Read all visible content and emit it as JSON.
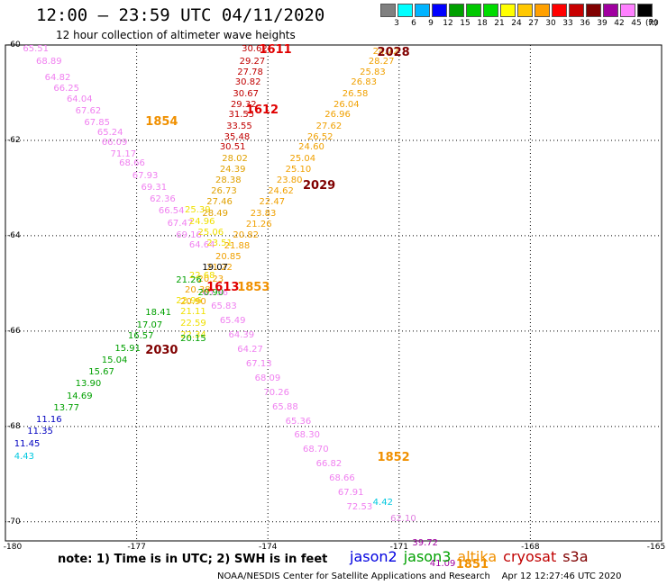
{
  "header": {
    "title": "12:00 – 23:59 UTC 04/11/2020",
    "subtitle": "12 hour collection of altimeter wave heights"
  },
  "colorbar": {
    "colors": [
      "#808080",
      "#00ffff",
      "#00b4ff",
      "#0000ff",
      "#00a000",
      "#00c800",
      "#00dc00",
      "#ffff00",
      "#ffc800",
      "#ffa000",
      "#ff0000",
      "#c80000",
      "#800000",
      "#a000a0",
      "#ff80ff",
      "#000000"
    ],
    "tick_labels": [
      "3",
      "6",
      "9",
      "12",
      "15",
      "18",
      "21",
      "24",
      "27",
      "30",
      "33",
      "36",
      "39",
      "42",
      "45",
      "70"
    ],
    "unit": "(ft)"
  },
  "axes": {
    "lon_labels": [
      "-180",
      "-177",
      "-174",
      "-171",
      "-168",
      "-165"
    ],
    "lat_labels": [
      "-60",
      "-62",
      "-64",
      "-66",
      "-68",
      "-70"
    ]
  },
  "tracks": [
    {
      "color": "#f080f0",
      "pts": [
        [
          "65.51",
          -179.6,
          -60.1
        ],
        [
          "68.89",
          -179.3,
          -60.35
        ],
        [
          "64.82",
          -179.1,
          -60.7
        ],
        [
          "66.25",
          -178.9,
          -60.93
        ],
        [
          "64.04",
          -178.6,
          -61.15
        ],
        [
          "67.62",
          -178.4,
          -61.4
        ],
        [
          "67.85",
          -178.2,
          -61.65
        ],
        [
          "65.24",
          -177.9,
          -61.85
        ],
        [
          "66.09",
          -177.8,
          -62.05
        ],
        [
          "71.17",
          -177.6,
          -62.3
        ],
        [
          "68.66",
          -177.4,
          -62.5
        ],
        [
          "67.93",
          -177.1,
          -62.75
        ],
        [
          "69.31",
          -176.9,
          -63.0
        ],
        [
          "62.36",
          -176.7,
          -63.25
        ],
        [
          "66.54",
          -176.5,
          -63.5
        ],
        [
          "67.47",
          -176.3,
          -63.75
        ],
        [
          "69.16",
          -176.1,
          -64.0
        ],
        [
          "64.64",
          -175.8,
          -64.2
        ],
        [
          "65.56",
          -175.5,
          -65.2
        ],
        [
          "65.83",
          -175.3,
          -65.5
        ],
        [
          "65.49",
          -175.1,
          -65.8
        ],
        [
          "64.39",
          -174.9,
          -66.1
        ],
        [
          "64.27",
          -174.7,
          -66.4
        ],
        [
          "67.13",
          -174.5,
          -66.7
        ],
        [
          "68.09",
          -174.3,
          -67.0
        ],
        [
          "70.26",
          -174.1,
          -67.3
        ],
        [
          "65.88",
          -173.9,
          -67.6
        ],
        [
          "65.36",
          -173.6,
          -67.9
        ],
        [
          "68.30",
          -173.4,
          -68.2
        ],
        [
          "68.70",
          -173.2,
          -68.5
        ],
        [
          "66.82",
          -172.9,
          -68.8
        ],
        [
          "68.66",
          -172.6,
          -69.1
        ],
        [
          "67.91",
          -172.4,
          -69.4
        ],
        [
          "72.53",
          -172.2,
          -69.7
        ]
      ]
    },
    {
      "color": "#f0a000",
      "pts": [
        [
          "24.72",
          -171.6,
          -60.15
        ],
        [
          "28.27",
          -171.7,
          -60.35
        ],
        [
          "25.83",
          -171.9,
          -60.58
        ],
        [
          "26.83",
          -172.1,
          -60.8
        ],
        [
          "26.58",
          -172.3,
          -61.03
        ],
        [
          "26.04",
          -172.5,
          -61.26
        ],
        [
          "26.96",
          -172.7,
          -61.48
        ],
        [
          "27.62",
          -172.9,
          -61.71
        ],
        [
          "26.52",
          -173.1,
          -61.94
        ],
        [
          "24.60",
          -173.3,
          -62.16
        ],
        [
          "25.04",
          -173.5,
          -62.39
        ],
        [
          "25.10",
          -173.6,
          -62.62
        ],
        [
          "23.80",
          -173.8,
          -62.85
        ],
        [
          "24.62",
          -174.0,
          -63.08
        ],
        [
          "22.47",
          -174.2,
          -63.31
        ],
        [
          "23.83",
          -174.4,
          -63.54
        ],
        [
          "21.26",
          -174.5,
          -63.77
        ],
        [
          "20.82",
          -174.8,
          -64.0
        ],
        [
          "21.88",
          -175.0,
          -64.23
        ],
        [
          "20.85",
          -175.2,
          -64.46
        ],
        [
          "21.22",
          -175.4,
          -64.69
        ],
        [
          "20.23",
          -175.6,
          -64.92
        ],
        [
          "20.38",
          -175.9,
          -65.15
        ],
        [
          "20.90",
          -176.0,
          -65.4
        ]
      ]
    },
    {
      "color": "#f0e000",
      "pts": [
        [
          "25.39",
          -175.9,
          -63.47
        ],
        [
          "24.96",
          -175.8,
          -63.72
        ],
        [
          "25.06",
          -175.6,
          -63.95
        ],
        [
          "23.51",
          -175.4,
          -64.18
        ],
        [
          "22.68",
          -175.8,
          -64.85
        ],
        [
          "22.96",
          -176.1,
          -65.38
        ],
        [
          "21.11",
          -176.0,
          -65.6
        ],
        [
          "22.59",
          -176.0,
          -65.85
        ],
        [
          "22.34",
          -176.0,
          -66.1
        ]
      ]
    },
    {
      "color": "#c00000",
      "pts": [
        [
          "30.62",
          -174.6,
          -60.1
        ],
        [
          "29.27",
          -174.65,
          -60.35
        ],
        [
          "27.78",
          -174.7,
          -60.58
        ],
        [
          "30.82",
          -174.75,
          -60.8
        ],
        [
          "30.67",
          -174.8,
          -61.03
        ],
        [
          "29.32",
          -174.85,
          -61.26
        ],
        [
          "31.55",
          -174.9,
          -61.48
        ],
        [
          "33.55",
          -174.95,
          -61.71
        ],
        [
          "35.48",
          -175.0,
          -61.94
        ],
        [
          "30.51",
          -175.1,
          -62.16
        ]
      ]
    },
    {
      "color": "#e0a000",
      "pts": [
        [
          "28.02",
          -175.05,
          -62.39
        ],
        [
          "24.39",
          -175.1,
          -62.62
        ],
        [
          "28.38",
          -175.2,
          -62.85
        ],
        [
          "26.73",
          -175.3,
          -63.08
        ],
        [
          "27.46",
          -175.4,
          -63.31
        ],
        [
          "28.49",
          -175.5,
          -63.54
        ]
      ]
    },
    {
      "color": "#00a000",
      "pts": [
        [
          "21.26",
          -176.1,
          -64.95
        ],
        [
          "18.41",
          -176.8,
          -65.63
        ],
        [
          "17.07",
          -177.0,
          -65.88
        ],
        [
          "16.57",
          -177.2,
          -66.12
        ],
        [
          "15.91",
          -177.5,
          -66.38
        ],
        [
          "15.04",
          -177.8,
          -66.62
        ],
        [
          "15.67",
          -178.1,
          -66.87
        ],
        [
          "13.90",
          -178.4,
          -67.12
        ],
        [
          "14.69",
          -178.6,
          -67.38
        ],
        [
          "13.77",
          -178.9,
          -67.63
        ],
        [
          "20.15",
          -176.0,
          -66.17
        ],
        [
          "20.90",
          -175.6,
          -65.2
        ]
      ]
    },
    {
      "color": "#000000",
      "pts": [
        [
          "19.07",
          -175.5,
          -64.68
        ]
      ]
    },
    {
      "color": "#0000c0",
      "pts": [
        [
          "11.16",
          -179.3,
          -67.88
        ],
        [
          "11.35",
          -179.5,
          -68.12
        ],
        [
          "11.45",
          -179.8,
          -68.38
        ]
      ]
    },
    {
      "color": "#00c8e0",
      "pts": [
        [
          "4.43",
          -179.8,
          -68.65
        ],
        [
          "4.42",
          -171.6,
          -69.6
        ]
      ]
    },
    {
      "color": "#e080e0",
      "pts": [
        [
          "62.10",
          -171.2,
          -69.95
        ]
      ]
    },
    {
      "color": "#a000a0",
      "pts": [
        [
          "39.72",
          -170.7,
          -70.45
        ],
        [
          "41.09",
          -170.3,
          -70.9
        ]
      ]
    }
  ],
  "time_labels": [
    {
      "text": "1611",
      "color": "#e00000",
      "lon": -174.2,
      "lat": -60.1
    },
    {
      "text": "2028",
      "color": "#800000",
      "lon": -171.5,
      "lat": -60.15
    },
    {
      "text": "1854",
      "color": "#f09000",
      "lon": -176.8,
      "lat": -61.6
    },
    {
      "text": "1612",
      "color": "#e00000",
      "lon": -174.5,
      "lat": -61.35
    },
    {
      "text": "2029",
      "color": "#800000",
      "lon": -173.2,
      "lat": -62.95
    },
    {
      "text": "1613",
      "color": "#e00000",
      "lon": -175.4,
      "lat": -65.07
    },
    {
      "text": "1853",
      "color": "#f09000",
      "lon": -174.7,
      "lat": -65.07
    },
    {
      "text": "2030",
      "color": "#800000",
      "lon": -176.8,
      "lat": -66.4
    },
    {
      "text": "1852",
      "color": "#f09000",
      "lon": -171.5,
      "lat": -68.65
    },
    {
      "text": "1851",
      "color": "#f09000",
      "lon": -169.7,
      "lat": -70.9
    }
  ],
  "footer": {
    "note": "note: 1) Time is in UTC; 2) SWH is in feet",
    "legend": [
      {
        "name": "jason2",
        "color": "#0000e0"
      },
      {
        "name": "jason3",
        "color": "#00a000"
      },
      {
        "name": "altika",
        "color": "#f09000"
      },
      {
        "name": "cryosat",
        "color": "#c00000"
      },
      {
        "name": "s3a",
        "color": "#800000"
      }
    ],
    "credit": "NOAA/NESDIS Center for Satellite Applications and Research    Apr 12 12:27:46 UTC 2020"
  }
}
